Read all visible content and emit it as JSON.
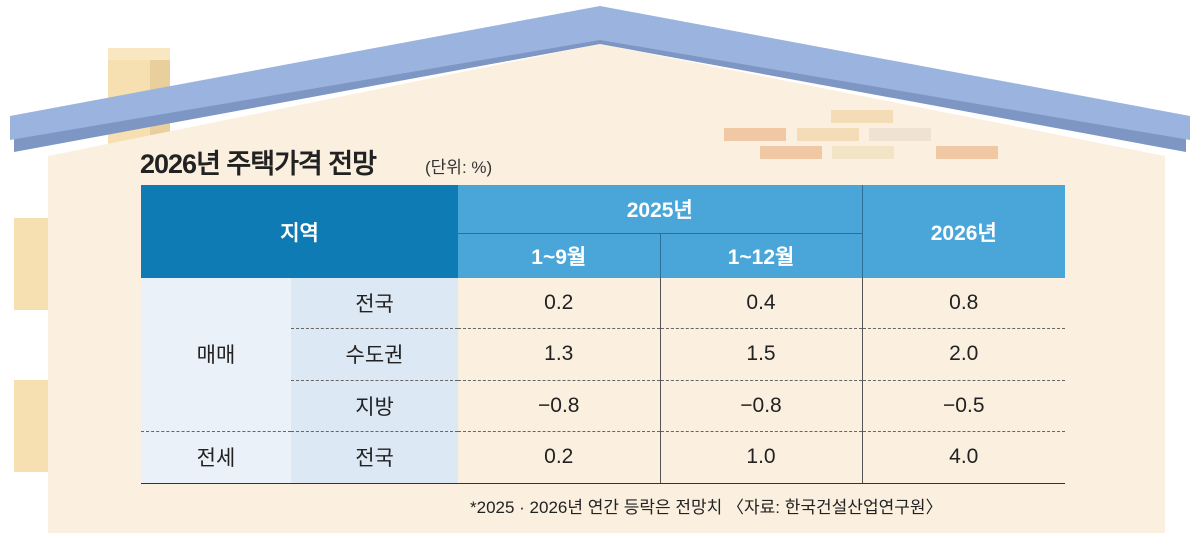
{
  "chart_data": {
    "type": "table",
    "title": "2026년 주택가격 전망",
    "unit": "(단위: %)",
    "header": {
      "region": "지역",
      "year_2025": "2025년",
      "period_1_9": "1~9월",
      "period_1_12": "1~12월",
      "year_2026": "2026년"
    },
    "groups": [
      {
        "name": "매매",
        "rows": [
          {
            "region": "전국",
            "jan_sep_2025": "0.2",
            "jan_dec_2025": "0.4",
            "y2026": "0.8"
          },
          {
            "region": "수도권",
            "jan_sep_2025": "1.3",
            "jan_dec_2025": "1.5",
            "y2026": "2.0"
          },
          {
            "region": "지방",
            "jan_sep_2025": "−0.8",
            "jan_dec_2025": "−0.8",
            "y2026": "−0.5"
          }
        ]
      },
      {
        "name": "전세",
        "rows": [
          {
            "region": "전국",
            "jan_sep_2025": "0.2",
            "jan_dec_2025": "1.0",
            "y2026": "4.0"
          }
        ]
      }
    ],
    "footnote": "*2025 · 2026년 연간 등락은 전망치 〈자료: 한국건설산업연구원〉"
  },
  "colors": {
    "roof": "#9bb3df",
    "house": "#fbf0df",
    "header_dark": "#0f7bb5",
    "header_light": "#4aa6d8"
  }
}
